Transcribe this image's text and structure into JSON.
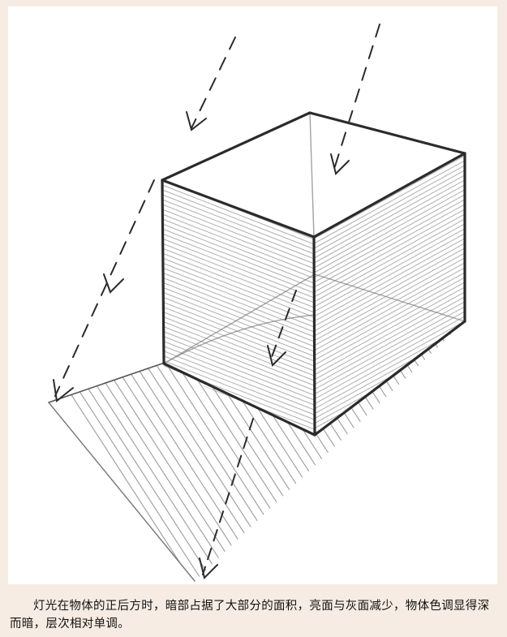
{
  "document": {
    "caption": "灯光在物体的正后方时，暗部占据了大部分的面积，亮面与灰面减少，物体色调显得深而暗，层次相对单调。"
  },
  "figure": {
    "subject": "pencil sketch of a box backlit by light from directly behind, casting a long shadow",
    "colors": {
      "background": "#f6ece3",
      "paper": "#ffffff",
      "graphite": "#2b2b2b",
      "hatch": "#8a8a8a"
    }
  }
}
